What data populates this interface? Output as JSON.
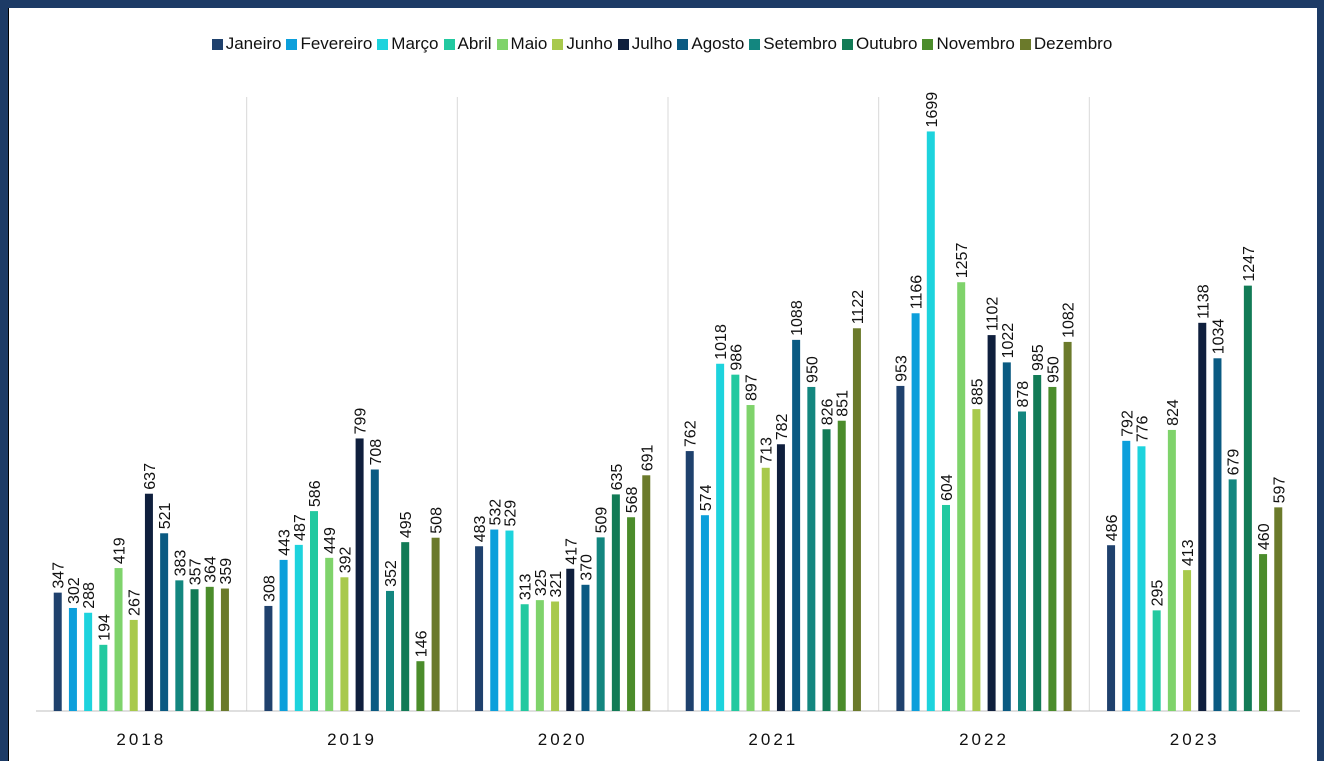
{
  "chart_data": {
    "type": "bar",
    "categories": [
      "2018",
      "2019",
      "2020",
      "2021",
      "2022",
      "2023"
    ],
    "series": [
      {
        "name": "Janeiro",
        "color": "#1f416d",
        "values": [
          347,
          308,
          483,
          762,
          953,
          486
        ]
      },
      {
        "name": "Fevereiro",
        "color": "#0c9fdb",
        "values": [
          302,
          443,
          532,
          574,
          1166,
          792
        ]
      },
      {
        "name": "Março",
        "color": "#1dd3dd",
        "values": [
          288,
          487,
          529,
          1018,
          1699,
          776
        ]
      },
      {
        "name": "Abril",
        "color": "#22c9a0",
        "values": [
          194,
          586,
          313,
          986,
          604,
          295
        ]
      },
      {
        "name": "Maio",
        "color": "#7fd36b",
        "values": [
          419,
          449,
          325,
          897,
          1257,
          824
        ]
      },
      {
        "name": "Junho",
        "color": "#a8c94c",
        "values": [
          267,
          392,
          321,
          713,
          885,
          413
        ]
      },
      {
        "name": "Julho",
        "color": "#0f1f3d",
        "values": [
          637,
          799,
          417,
          782,
          1102,
          1138
        ]
      },
      {
        "name": "Agosto",
        "color": "#0a5a82",
        "values": [
          521,
          708,
          370,
          1088,
          1022,
          1034
        ]
      },
      {
        "name": "Setembro",
        "color": "#13867f",
        "values": [
          383,
          352,
          509,
          950,
          878,
          679
        ]
      },
      {
        "name": "Outubro",
        "color": "#127b56",
        "values": [
          357,
          495,
          635,
          826,
          985,
          1247
        ]
      },
      {
        "name": "Novembro",
        "color": "#4b8c2b",
        "values": [
          364,
          146,
          568,
          851,
          950,
          460
        ]
      },
      {
        "name": "Dezembro",
        "color": "#6b7a2b",
        "values": [
          359,
          508,
          691,
          1122,
          1082,
          597
        ]
      }
    ],
    "ylim": [
      0,
      1800
    ]
  }
}
